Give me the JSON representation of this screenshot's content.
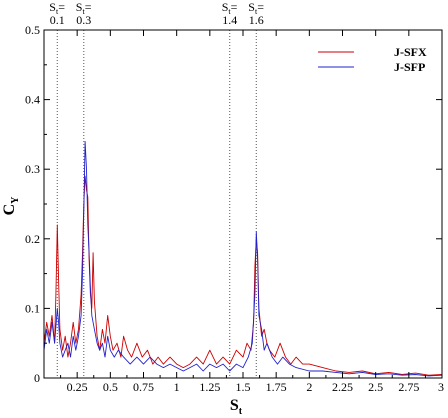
{
  "chart_data": {
    "type": "line",
    "xlabel": {
      "main": "S",
      "sub": "t"
    },
    "ylabel": {
      "main": "C",
      "sub": "Y"
    },
    "xlim": [
      0,
      3
    ],
    "ylim": [
      0,
      0.5
    ],
    "x_ticks": [
      0.25,
      0.5,
      0.75,
      1,
      1.25,
      1.5,
      1.75,
      2,
      2.25,
      2.5,
      2.75,
      3
    ],
    "x_tick_labels": [
      "0.25",
      "0.5",
      "0.75",
      "1",
      "1.25",
      "1.5",
      "1.75",
      "2",
      "2.25",
      "2.5",
      "2.75",
      "3"
    ],
    "y_ticks": [
      0,
      0.1,
      0.2,
      0.3,
      0.4,
      0.5
    ],
    "y_tick_labels": [
      "0",
      "0.1",
      "0.2",
      "0.3",
      "0.4",
      "0.5"
    ],
    "reference_lines": [
      {
        "x": 0.1,
        "label_main": "S",
        "label_sub": "t",
        "label_eq": "=",
        "label_value": "0.1"
      },
      {
        "x": 0.3,
        "label_main": "S",
        "label_sub": "t",
        "label_eq": "=",
        "label_value": "0.3"
      },
      {
        "x": 1.4,
        "label_main": "S",
        "label_sub": "t",
        "label_eq": "=",
        "label_value": "1.4"
      },
      {
        "x": 1.6,
        "label_main": "S",
        "label_sub": "t",
        "label_eq": "=",
        "label_value": "1.6"
      }
    ],
    "legend_position": "top-right",
    "series": [
      {
        "name": "J-SFX",
        "color": "#cc0000",
        "points": [
          [
            0.0,
            0.05
          ],
          [
            0.02,
            0.08
          ],
          [
            0.04,
            0.06
          ],
          [
            0.06,
            0.09
          ],
          [
            0.08,
            0.05
          ],
          [
            0.09,
            0.12
          ],
          [
            0.1,
            0.22
          ],
          [
            0.11,
            0.14
          ],
          [
            0.12,
            0.07
          ],
          [
            0.14,
            0.04
          ],
          [
            0.16,
            0.06
          ],
          [
            0.18,
            0.03
          ],
          [
            0.2,
            0.05
          ],
          [
            0.22,
            0.08
          ],
          [
            0.24,
            0.05
          ],
          [
            0.26,
            0.07
          ],
          [
            0.28,
            0.12
          ],
          [
            0.29,
            0.18
          ],
          [
            0.3,
            0.25
          ],
          [
            0.31,
            0.29
          ],
          [
            0.32,
            0.27
          ],
          [
            0.33,
            0.26
          ],
          [
            0.34,
            0.17
          ],
          [
            0.35,
            0.12
          ],
          [
            0.36,
            0.1
          ],
          [
            0.37,
            0.18
          ],
          [
            0.38,
            0.11
          ],
          [
            0.4,
            0.06
          ],
          [
            0.42,
            0.04
          ],
          [
            0.44,
            0.07
          ],
          [
            0.46,
            0.05
          ],
          [
            0.48,
            0.09
          ],
          [
            0.5,
            0.06
          ],
          [
            0.52,
            0.04
          ],
          [
            0.55,
            0.05
          ],
          [
            0.58,
            0.03
          ],
          [
            0.6,
            0.06
          ],
          [
            0.63,
            0.04
          ],
          [
            0.66,
            0.03
          ],
          [
            0.7,
            0.05
          ],
          [
            0.74,
            0.03
          ],
          [
            0.78,
            0.04
          ],
          [
            0.82,
            0.02
          ],
          [
            0.86,
            0.03
          ],
          [
            0.9,
            0.02
          ],
          [
            0.95,
            0.03
          ],
          [
            1.0,
            0.02
          ],
          [
            1.05,
            0.015
          ],
          [
            1.1,
            0.02
          ],
          [
            1.15,
            0.03
          ],
          [
            1.2,
            0.02
          ],
          [
            1.25,
            0.04
          ],
          [
            1.3,
            0.02
          ],
          [
            1.35,
            0.03
          ],
          [
            1.4,
            0.02
          ],
          [
            1.45,
            0.04
          ],
          [
            1.5,
            0.03
          ],
          [
            1.53,
            0.05
          ],
          [
            1.56,
            0.04
          ],
          [
            1.58,
            0.08
          ],
          [
            1.59,
            0.16
          ],
          [
            1.6,
            0.2
          ],
          [
            1.61,
            0.18
          ],
          [
            1.62,
            0.1
          ],
          [
            1.64,
            0.06
          ],
          [
            1.66,
            0.07
          ],
          [
            1.68,
            0.05
          ],
          [
            1.7,
            0.04
          ],
          [
            1.74,
            0.03
          ],
          [
            1.78,
            0.05
          ],
          [
            1.82,
            0.03
          ],
          [
            1.86,
            0.02
          ],
          [
            1.9,
            0.03
          ],
          [
            1.95,
            0.02
          ],
          [
            2.0,
            0.02
          ],
          [
            2.1,
            0.015
          ],
          [
            2.2,
            0.01
          ],
          [
            2.3,
            0.008
          ],
          [
            2.4,
            0.01
          ],
          [
            2.5,
            0.006
          ],
          [
            2.6,
            0.008
          ],
          [
            2.7,
            0.005
          ],
          [
            2.8,
            0.007
          ],
          [
            2.9,
            0.004
          ],
          [
            3.0,
            0.005
          ]
        ]
      },
      {
        "name": "J-SFP",
        "color": "#2222cc",
        "points": [
          [
            0.0,
            0.04
          ],
          [
            0.02,
            0.07
          ],
          [
            0.04,
            0.05
          ],
          [
            0.06,
            0.08
          ],
          [
            0.08,
            0.05
          ],
          [
            0.1,
            0.1
          ],
          [
            0.11,
            0.08
          ],
          [
            0.12,
            0.05
          ],
          [
            0.14,
            0.03
          ],
          [
            0.16,
            0.04
          ],
          [
            0.18,
            0.05
          ],
          [
            0.2,
            0.03
          ],
          [
            0.22,
            0.06
          ],
          [
            0.24,
            0.04
          ],
          [
            0.26,
            0.06
          ],
          [
            0.28,
            0.09
          ],
          [
            0.29,
            0.15
          ],
          [
            0.3,
            0.24
          ],
          [
            0.31,
            0.34
          ],
          [
            0.32,
            0.3
          ],
          [
            0.33,
            0.22
          ],
          [
            0.34,
            0.18
          ],
          [
            0.35,
            0.13
          ],
          [
            0.36,
            0.09
          ],
          [
            0.38,
            0.07
          ],
          [
            0.4,
            0.05
          ],
          [
            0.42,
            0.04
          ],
          [
            0.44,
            0.05
          ],
          [
            0.46,
            0.03
          ],
          [
            0.48,
            0.06
          ],
          [
            0.5,
            0.04
          ],
          [
            0.53,
            0.03
          ],
          [
            0.56,
            0.04
          ],
          [
            0.6,
            0.03
          ],
          [
            0.65,
            0.02
          ],
          [
            0.7,
            0.03
          ],
          [
            0.75,
            0.02
          ],
          [
            0.8,
            0.03
          ],
          [
            0.85,
            0.02
          ],
          [
            0.9,
            0.015
          ],
          [
            0.95,
            0.02
          ],
          [
            1.0,
            0.015
          ],
          [
            1.05,
            0.01
          ],
          [
            1.1,
            0.015
          ],
          [
            1.15,
            0.02
          ],
          [
            1.2,
            0.01
          ],
          [
            1.25,
            0.02
          ],
          [
            1.3,
            0.015
          ],
          [
            1.35,
            0.02
          ],
          [
            1.4,
            0.01
          ],
          [
            1.45,
            0.02
          ],
          [
            1.5,
            0.015
          ],
          [
            1.54,
            0.03
          ],
          [
            1.57,
            0.05
          ],
          [
            1.59,
            0.12
          ],
          [
            1.6,
            0.21
          ],
          [
            1.61,
            0.17
          ],
          [
            1.62,
            0.09
          ],
          [
            1.64,
            0.07
          ],
          [
            1.66,
            0.04
          ],
          [
            1.68,
            0.05
          ],
          [
            1.72,
            0.03
          ],
          [
            1.76,
            0.02
          ],
          [
            1.8,
            0.03
          ],
          [
            1.85,
            0.02
          ],
          [
            1.9,
            0.015
          ],
          [
            2.0,
            0.01
          ],
          [
            2.1,
            0.01
          ],
          [
            2.2,
            0.008
          ],
          [
            2.3,
            0.006
          ],
          [
            2.4,
            0.008
          ],
          [
            2.5,
            0.005
          ],
          [
            2.6,
            0.006
          ],
          [
            2.7,
            0.004
          ],
          [
            2.8,
            0.005
          ],
          [
            2.9,
            0.003
          ],
          [
            3.0,
            0.004
          ]
        ]
      }
    ]
  }
}
